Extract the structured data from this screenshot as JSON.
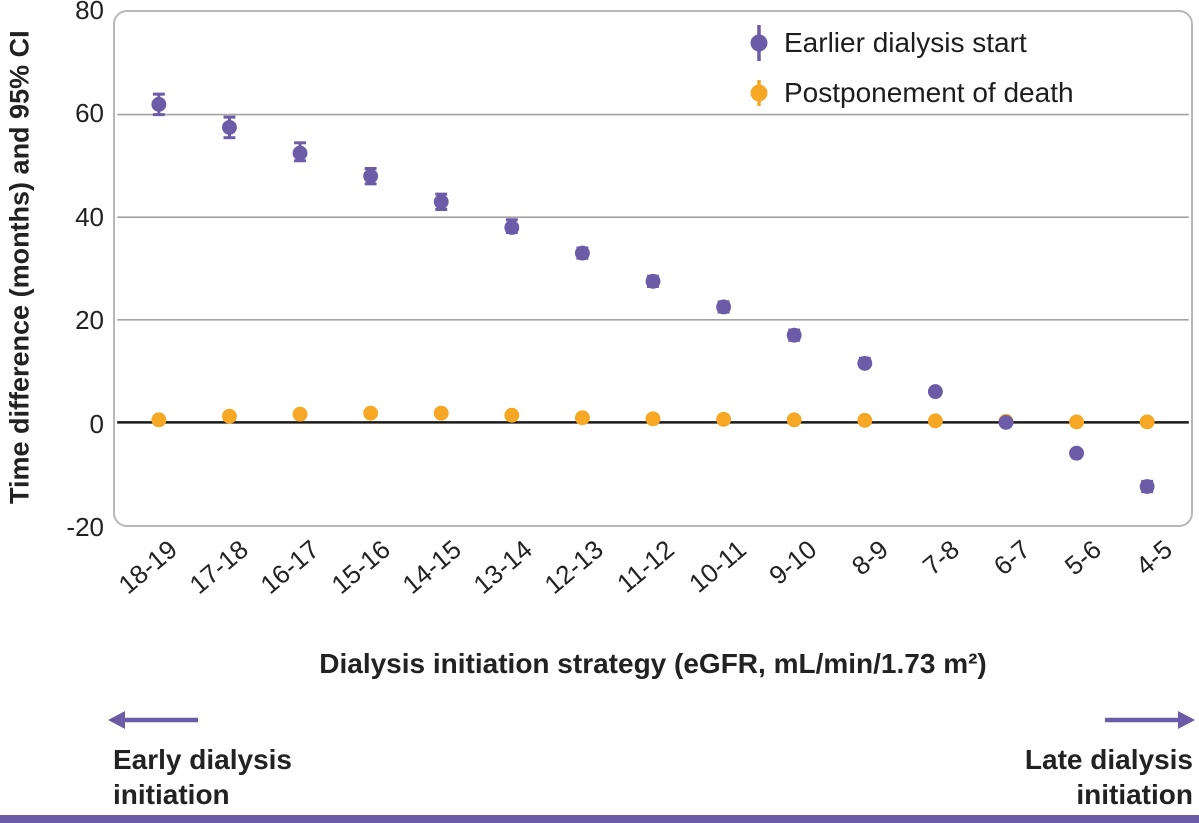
{
  "colors": {
    "purple": "#6c5ba7",
    "orange": "#f6a723",
    "gridline": "#a3a3a3",
    "zero_line": "#1a1a1a",
    "plot_border": "#b8b8b8",
    "footer_bar": "#6c5ba7",
    "text": "#222222"
  },
  "chart_data": {
    "type": "scatter",
    "title": "",
    "xlabel": "Dialysis initiation strategy (eGFR, mL/min/1.73 m²)",
    "ylabel": "Time difference (months) and 95% CI",
    "ylim": [
      -20,
      80
    ],
    "yticks": [
      80,
      60,
      40,
      20,
      0,
      -20
    ],
    "grid": true,
    "legend_position": "top-right",
    "categories": [
      "18-19",
      "17-18",
      "16-17",
      "15-16",
      "14-15",
      "13-14",
      "12-13",
      "11-12",
      "10-11",
      "9-10",
      "8-9",
      "7-8",
      "6-7",
      "5-6",
      "4-5"
    ],
    "series": [
      {
        "name": "Earlier dialysis start",
        "color": "#6c5ba7",
        "values": [
          62,
          57.5,
          52.5,
          48,
          43,
          38,
          33,
          27.5,
          22.5,
          17,
          11.5,
          6,
          0,
          -6,
          -12.5
        ],
        "ci_low": [
          60,
          55.5,
          51,
          46.5,
          41.5,
          37,
          32,
          26.5,
          21.5,
          16,
          11,
          5.5,
          -0.5,
          -6.5,
          -13.5
        ],
        "ci_high": [
          64,
          59.5,
          54.5,
          49.5,
          44.5,
          39.5,
          34,
          28.5,
          23.5,
          18,
          12.5,
          6.5,
          0.5,
          -5.5,
          -11.5
        ]
      },
      {
        "name": "Postponement of death",
        "color": "#f6a723",
        "values": [
          0.5,
          1.2,
          1.6,
          1.8,
          1.8,
          1.4,
          0.9,
          0.7,
          0.6,
          0.5,
          0.4,
          0.3,
          0.2,
          0.1,
          0.1
        ],
        "ci_low": [
          0.2,
          0.9,
          1.3,
          1.5,
          1.5,
          1.1,
          0.6,
          0.4,
          0.3,
          0.2,
          0.1,
          0.0,
          -0.1,
          -0.2,
          -0.2
        ],
        "ci_high": [
          0.8,
          1.5,
          1.9,
          2.1,
          2.1,
          1.7,
          1.2,
          1.0,
          0.9,
          0.8,
          0.7,
          0.6,
          0.5,
          0.4,
          0.4
        ]
      }
    ]
  },
  "annotations": {
    "early_line1": "Early dialysis",
    "early_line2": "initiation",
    "late_line1": "Late dialysis",
    "late_line2": "initiation"
  }
}
